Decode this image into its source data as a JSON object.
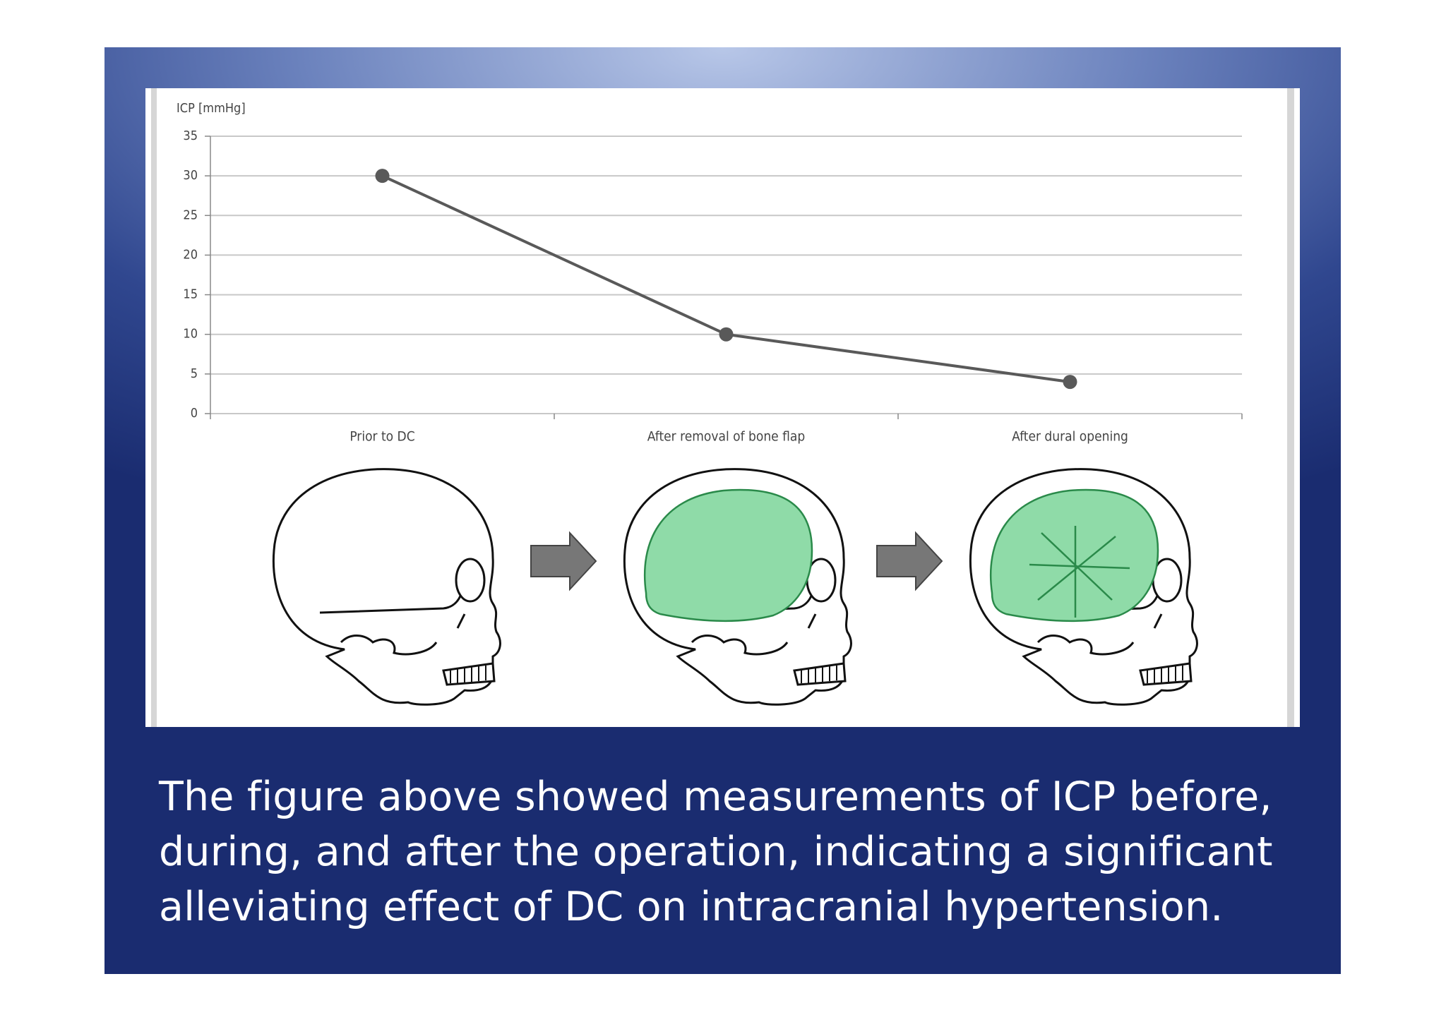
{
  "chart_data": {
    "type": "line",
    "y_label": "ICP [mmHg]",
    "categories": [
      "Prior to DC",
      "After removal of bone flap",
      "After dural opening"
    ],
    "series": [
      {
        "name": "ICP",
        "color": "#595959",
        "values": [
          30,
          10,
          4
        ]
      }
    ],
    "ylim": [
      0,
      35
    ],
    "yticks": [
      0,
      5,
      10,
      15,
      20,
      25,
      30,
      35
    ],
    "grid": true
  },
  "caption": [
    "The figure above showed measurements of ICP before,",
    "during, and after the operation, indicating a significant",
    "alleviating effect of DC on intracranial hypertension."
  ]
}
